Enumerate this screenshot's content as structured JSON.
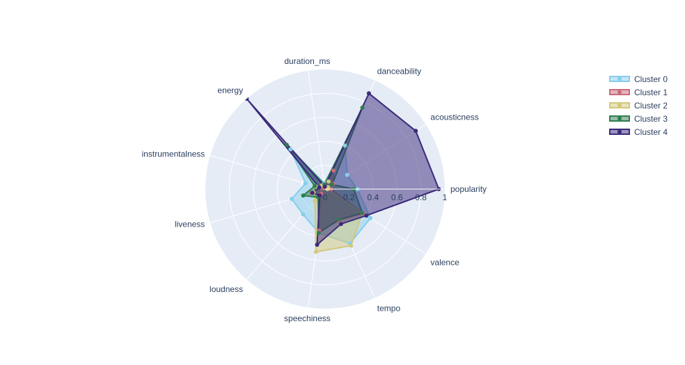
{
  "chart_data": {
    "type": "radar",
    "title": "",
    "axes": [
      "popularity",
      "acousticness",
      "danceability",
      "duration_ms",
      "energy",
      "instrumentalness",
      "liveness",
      "loudness",
      "speechiness",
      "tempo",
      "valence"
    ],
    "radial_ticks": [
      "0",
      "0.2",
      "0.4",
      "0.6",
      "0.8",
      "1"
    ],
    "radial_range": [
      0,
      1
    ],
    "grid": true,
    "legend_position": "top-right",
    "series": [
      {
        "name": "Cluster 0",
        "color": "#87CEEB",
        "values": [
          0.27,
          0.22,
          0.4,
          0.05,
          0.44,
          0.17,
          0.29,
          0.28,
          0.37,
          0.5,
          0.45
        ]
      },
      {
        "name": "Cluster 1",
        "color": "#C96B7A",
        "values": [
          0.05,
          0.08,
          0.17,
          0.02,
          0.04,
          0.03,
          0.12,
          0.05,
          0.35,
          0.29,
          0.38
        ]
      },
      {
        "name": "Cluster 2",
        "color": "#D4C77A",
        "values": [
          0.02,
          0.03,
          0.07,
          0.01,
          0.04,
          0.08,
          0.1,
          0.13,
          0.53,
          0.52,
          0.37
        ]
      },
      {
        "name": "Cluster 3",
        "color": "#2E7D4F",
        "values": [
          0.24,
          0.07,
          0.75,
          0.04,
          0.49,
          0.09,
          0.19,
          0.09,
          0.37,
          0.28,
          0.37
        ]
      },
      {
        "name": "Cluster 4",
        "color": "#3B2A7A",
        "values": [
          0.95,
          0.9,
          0.88,
          0.02,
          1.0,
          0.05,
          0.11,
          0.07,
          0.47,
          0.32,
          0.41
        ]
      }
    ]
  }
}
